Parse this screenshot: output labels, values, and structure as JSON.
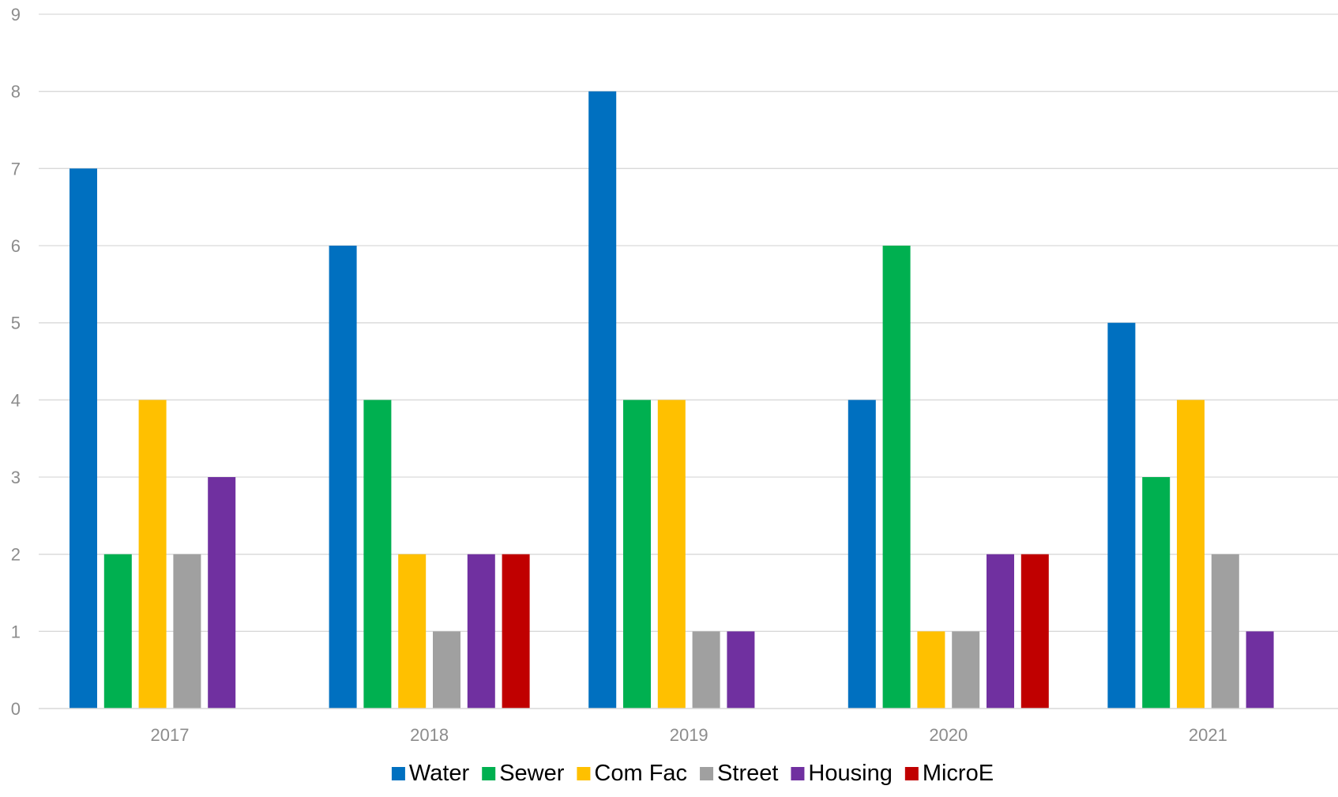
{
  "chart_data": {
    "type": "bar",
    "categories": [
      "2017",
      "2018",
      "2019",
      "2020",
      "2021"
    ],
    "series": [
      {
        "name": "Water",
        "color": "#0070C0",
        "values": [
          7,
          6,
          8,
          4,
          5
        ]
      },
      {
        "name": "Sewer",
        "color": "#00B050",
        "values": [
          2,
          4,
          4,
          6,
          3
        ]
      },
      {
        "name": "Com Fac",
        "color": "#FFC000",
        "values": [
          4,
          2,
          4,
          1,
          4
        ]
      },
      {
        "name": "Street",
        "color": "#A0A0A0",
        "values": [
          2,
          1,
          1,
          1,
          2
        ]
      },
      {
        "name": "Housing",
        "color": "#7030A0",
        "values": [
          3,
          2,
          1,
          2,
          1
        ]
      },
      {
        "name": "MicroE",
        "color": "#C00000",
        "values": [
          0,
          2,
          0,
          2,
          0
        ]
      }
    ],
    "ylim": [
      0,
      9
    ],
    "yticks": [
      "0",
      "1",
      "2",
      "3",
      "4",
      "5",
      "6",
      "7",
      "8",
      "9"
    ],
    "grid": true,
    "legend_position": "bottom"
  }
}
